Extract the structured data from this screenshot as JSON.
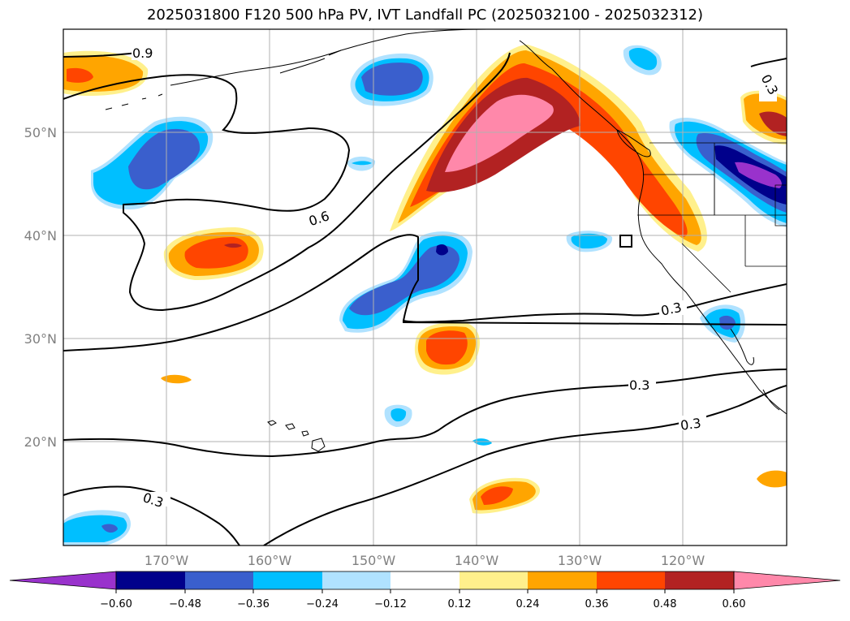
{
  "title": "2025031800 F120 500 hPa PV, IVT Landfall PC (2025032100 - 2025032312)",
  "lat_labels": [
    "50°N",
    "40°N",
    "30°N",
    "20°N"
  ],
  "lon_labels": [
    "170°W",
    "160°W",
    "150°W",
    "140°W",
    "130°W",
    "120°W"
  ],
  "contour_labels": [
    "0.9",
    "0.6",
    "0.3",
    "0.3",
    "0.3",
    "0.3",
    "0.3"
  ],
  "colorbar": {
    "ticks": [
      "−0.60",
      "−0.48",
      "−0.36",
      "−0.24",
      "−0.12",
      "0.12",
      "0.24",
      "0.36",
      "0.48",
      "0.60"
    ],
    "colors": [
      "#9932cc",
      "#00008b",
      "#3a5fcd",
      "#00bfff",
      "#b0e2ff",
      "#ffffff",
      "#fff08c",
      "#ffa500",
      "#ff4500",
      "#b22222",
      "#ff88aa"
    ]
  },
  "colors": {
    "grid": "#b0b0b0",
    "contour": "#000000",
    "axis_text": "#808080"
  }
}
